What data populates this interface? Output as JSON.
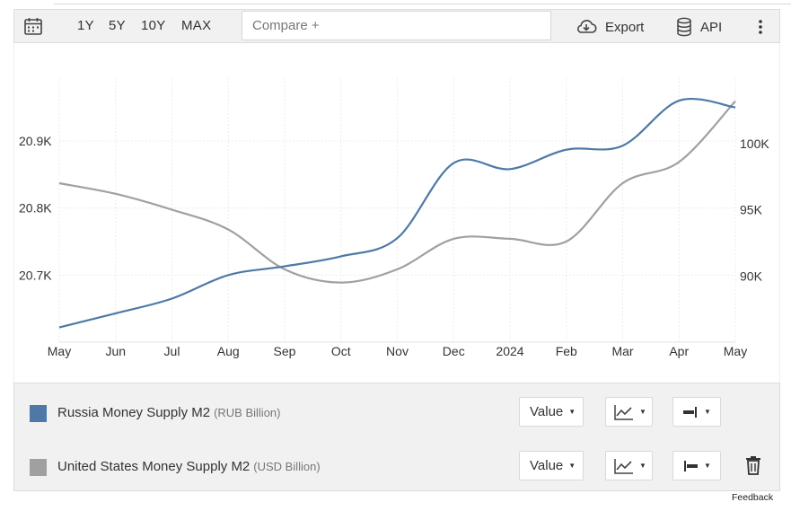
{
  "toolbar": {
    "ranges": [
      "1Y",
      "5Y",
      "10Y",
      "MAX"
    ],
    "compare_placeholder": "Compare +",
    "export_label": "Export",
    "api_label": "API"
  },
  "chart_data": {
    "type": "line",
    "x_ticks": [
      "May",
      "Jun",
      "Jul",
      "Aug",
      "Sep",
      "Oct",
      "Nov",
      "Dec",
      "2024",
      "Feb",
      "Mar",
      "Apr",
      "May"
    ],
    "left_axis": {
      "ticks": [
        "20.7K",
        "20.8K",
        "20.9K"
      ],
      "ylim": [
        20600,
        20995
      ]
    },
    "right_axis": {
      "ticks": [
        "90K",
        "95K",
        "100K"
      ],
      "ylim": [
        85000,
        105000
      ]
    },
    "grid": true,
    "legend_position": "bottom",
    "series": [
      {
        "name": "Russia Money Supply M2",
        "unit": "(RUB Billion)",
        "axis": "left",
        "color": "#4e79a7",
        "x": [
          "2023-05",
          "2023-06",
          "2023-07",
          "2023-08",
          "2023-09",
          "2023-10",
          "2023-11",
          "2023-12",
          "2024-01",
          "2024-02",
          "2024-03",
          "2024-04",
          "2024-05"
        ],
        "values": [
          20622,
          20643,
          20665,
          20700,
          20713,
          20728,
          20755,
          20867,
          20858,
          20887,
          20893,
          20960,
          20950
        ]
      },
      {
        "name": "United States Money Supply M2",
        "unit": "(USD Billion)",
        "axis": "right",
        "color": "#a0a0a0",
        "x": [
          "2023-05",
          "2023-06",
          "2023-07",
          "2023-08",
          "2023-09",
          "2023-10",
          "2023-11",
          "2023-12",
          "2024-01",
          "2024-02",
          "2024-03",
          "2024-04",
          "2024-05"
        ],
        "values": [
          97000,
          96200,
          95000,
          93500,
          90500,
          89500,
          90500,
          92800,
          92800,
          92600,
          97000,
          98600,
          103200
        ]
      }
    ]
  },
  "legend": {
    "value_label": "Value",
    "rows": [
      {
        "name": "Russia Money Supply M2",
        "unit": "(RUB Billion)"
      },
      {
        "name": "United States Money Supply M2",
        "unit": "(USD Billion)"
      }
    ]
  },
  "feedback_label": "Feedback"
}
